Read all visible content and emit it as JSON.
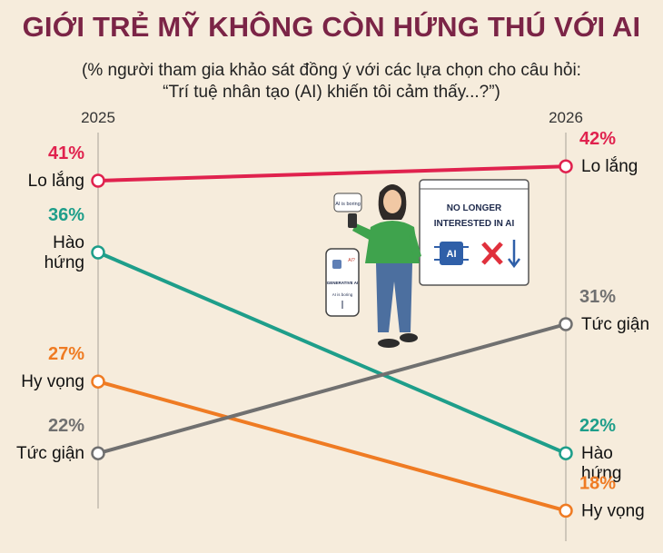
{
  "title": "GIỚI TRẺ MỸ KHÔNG CÒN HỨNG THÚ VỚI AI",
  "subtitle_line1": "(% người tham gia khảo sát đồng ý với các lựa chọn cho câu hỏi:",
  "subtitle_line2": "“Trí tuệ nhân tạo (AI) khiến tôi cảm thấy...?”)",
  "chart_data": {
    "type": "line",
    "x": [
      "2025",
      "2026"
    ],
    "series": [
      {
        "name": "Lo lắng",
        "values": [
          41,
          42
        ],
        "color": "#e0224e",
        "value_labels": [
          "41%",
          "42%"
        ],
        "label_lines_start": [
          "Lo lắng"
        ],
        "label_lines_end": [
          "Lo lắng"
        ]
      },
      {
        "name": "Hào hứng",
        "values": [
          36,
          22
        ],
        "color": "#1e9e8a",
        "value_labels": [
          "36%",
          "22%"
        ],
        "label_lines_start": [
          "Hào",
          "hứng"
        ],
        "label_lines_end": [
          "Hào",
          "hứng"
        ]
      },
      {
        "name": "Hy vọng",
        "values": [
          27,
          18
        ],
        "color": "#ef7b23",
        "value_labels": [
          "27%",
          "18%"
        ],
        "label_lines_start": [
          "Hy vọng"
        ],
        "label_lines_end": [
          "Hy vọng"
        ]
      },
      {
        "name": "Tức giận",
        "values": [
          22,
          31
        ],
        "color": "#707070",
        "value_labels": [
          "22%",
          "31%"
        ],
        "label_lines_start": [
          "Tức giận"
        ],
        "label_lines_end": [
          "Tức giận"
        ]
      }
    ]
  },
  "illustration": {
    "phone_bubble": "AI is boring",
    "phone_app_lines": [
      "GENERATIVE AI",
      "AI is boring"
    ],
    "phone_tag": "AI?",
    "screen_text_lines": [
      "NO LONGER",
      "INTERESTED IN AI"
    ],
    "screen_chip": "AI"
  }
}
